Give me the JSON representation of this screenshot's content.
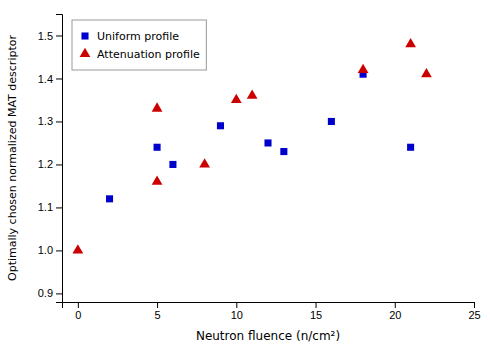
{
  "chart_data": {
    "type": "scatter",
    "xlabel": "Neutron fluence  (n/cm²)",
    "ylabel": "Optimally chosen normalized MAT descriptor",
    "series": [
      {
        "name": "Uniform profile",
        "color": "#0000CC",
        "marker": "square",
        "x": [
          2,
          5,
          6,
          9,
          12,
          13,
          16,
          18,
          21
        ],
        "values": [
          1.12,
          1.24,
          1.2,
          1.29,
          1.25,
          1.23,
          1.3,
          1.41,
          1.24
        ]
      },
      {
        "name": "Attenuation profile",
        "color": "#CC0000",
        "marker": "triangle",
        "x": [
          0,
          5,
          5,
          8,
          10,
          11,
          18,
          21,
          22
        ],
        "values": [
          1.0,
          1.16,
          1.33,
          1.2,
          1.35,
          1.36,
          1.42,
          1.48,
          1.41
        ]
      }
    ],
    "xlim": [
      -1,
      25
    ],
    "ylim": [
      0.88,
      1.55
    ],
    "xticks": [
      0,
      5,
      10,
      15,
      20,
      25
    ],
    "yticks": [
      0.9,
      {
        "value": 1,
        "label": "1.0"
      },
      1.1,
      1.2,
      1.3,
      1.4,
      1.5
    ],
    "grid": false,
    "legend": "upper left"
  }
}
